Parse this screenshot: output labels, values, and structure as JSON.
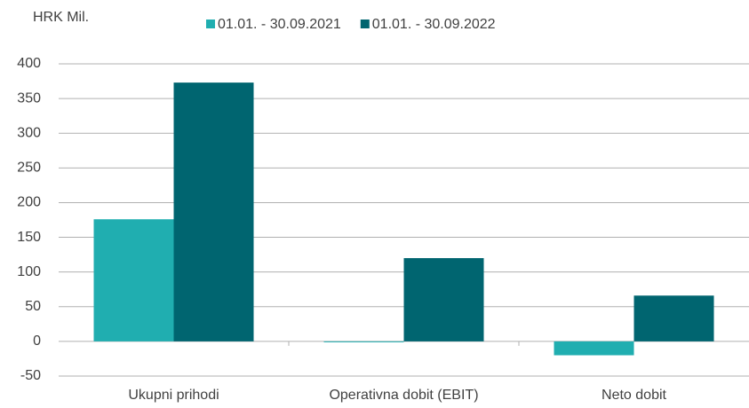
{
  "chart_data": {
    "type": "bar",
    "y_label": "HRK Mil.",
    "categories": [
      "Ukupni prihodi",
      "Operativna dobit (EBIT)",
      "Neto dobit"
    ],
    "series": [
      {
        "name": "01.01. - 30.09.2021",
        "color": "#20aeb0",
        "values": [
          176,
          -1,
          -20
        ]
      },
      {
        "name": "01.01. - 30.09.2022",
        "color": "#006570",
        "values": [
          373,
          120,
          66
        ]
      }
    ],
    "ylim": [
      -50,
      400
    ],
    "yticks": [
      -50,
      0,
      50,
      100,
      150,
      200,
      250,
      300,
      350,
      400
    ],
    "grid": true
  }
}
